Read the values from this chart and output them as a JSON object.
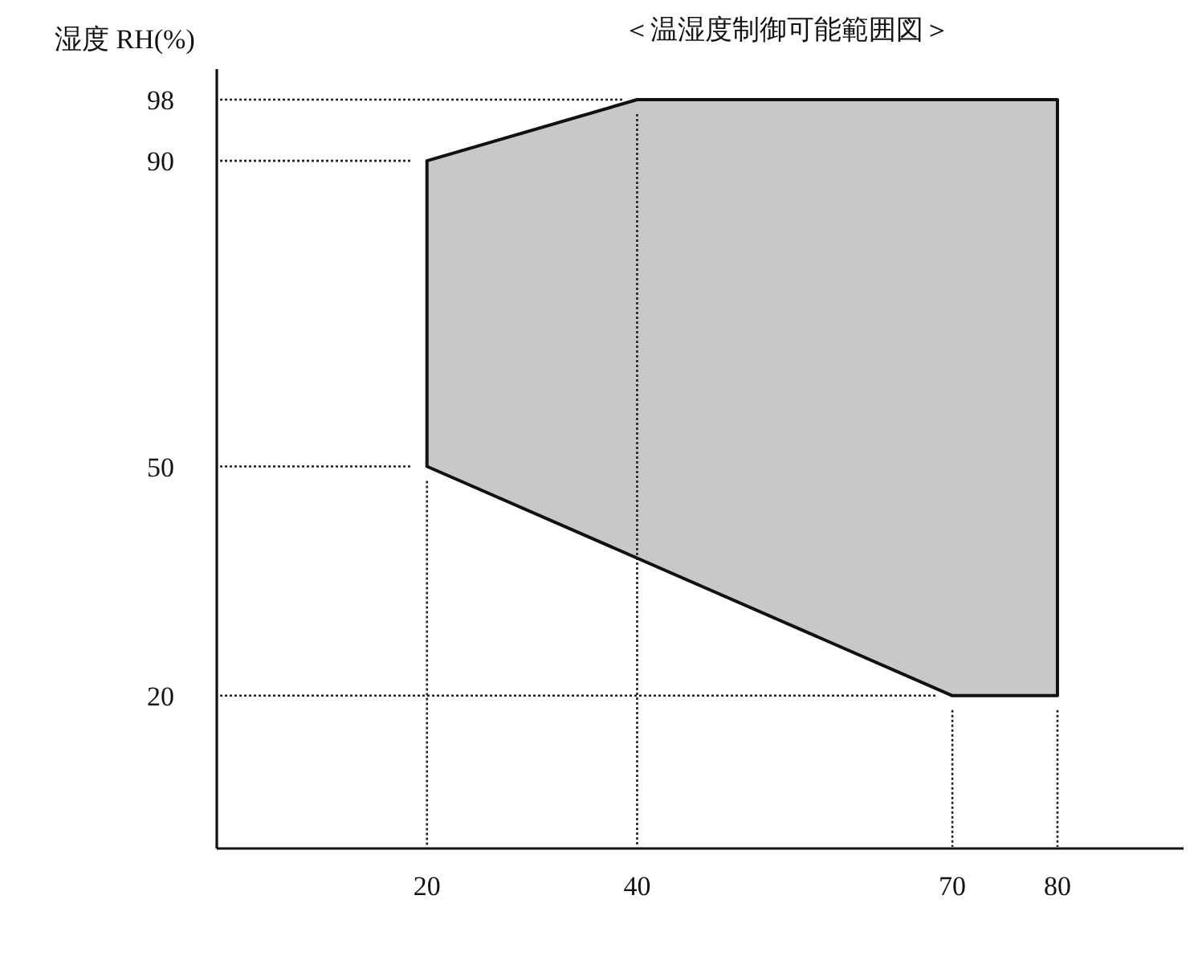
{
  "chart_data": {
    "type": "area",
    "title": "＜温湿度制御可能範囲図＞",
    "ylabel": "湿度 RH(%)",
    "x": [
      20,
      20,
      40,
      80,
      80,
      70
    ],
    "values": [
      50,
      90,
      98,
      98,
      20,
      20
    ],
    "color": "#c8c8c8",
    "xlim": [
      0,
      92
    ],
    "ylim": [
      0,
      102
    ],
    "xticks": [
      20,
      40,
      70,
      80
    ],
    "yticks": [
      20,
      50,
      90,
      98
    ],
    "ref_lines": [
      {
        "axis": "y",
        "value": 98,
        "color": "#222222",
        "line_style": "dotted"
      },
      {
        "axis": "y",
        "value": 90,
        "color": "#222222",
        "line_style": "dotted"
      },
      {
        "axis": "y",
        "value": 50,
        "color": "#222222",
        "line_style": "dotted"
      },
      {
        "axis": "y",
        "value": 20,
        "color": "#222222",
        "line_style": "dotted"
      },
      {
        "axis": "x",
        "value": 20,
        "color": "#222222",
        "line_style": "dotted"
      },
      {
        "axis": "x",
        "value": 40,
        "color": "#222222",
        "line_style": "dotted"
      },
      {
        "axis": "x",
        "value": 70,
        "color": "#222222",
        "line_style": "dotted"
      },
      {
        "axis": "x",
        "value": 80,
        "color": "#222222",
        "line_style": "dotted"
      }
    ]
  }
}
